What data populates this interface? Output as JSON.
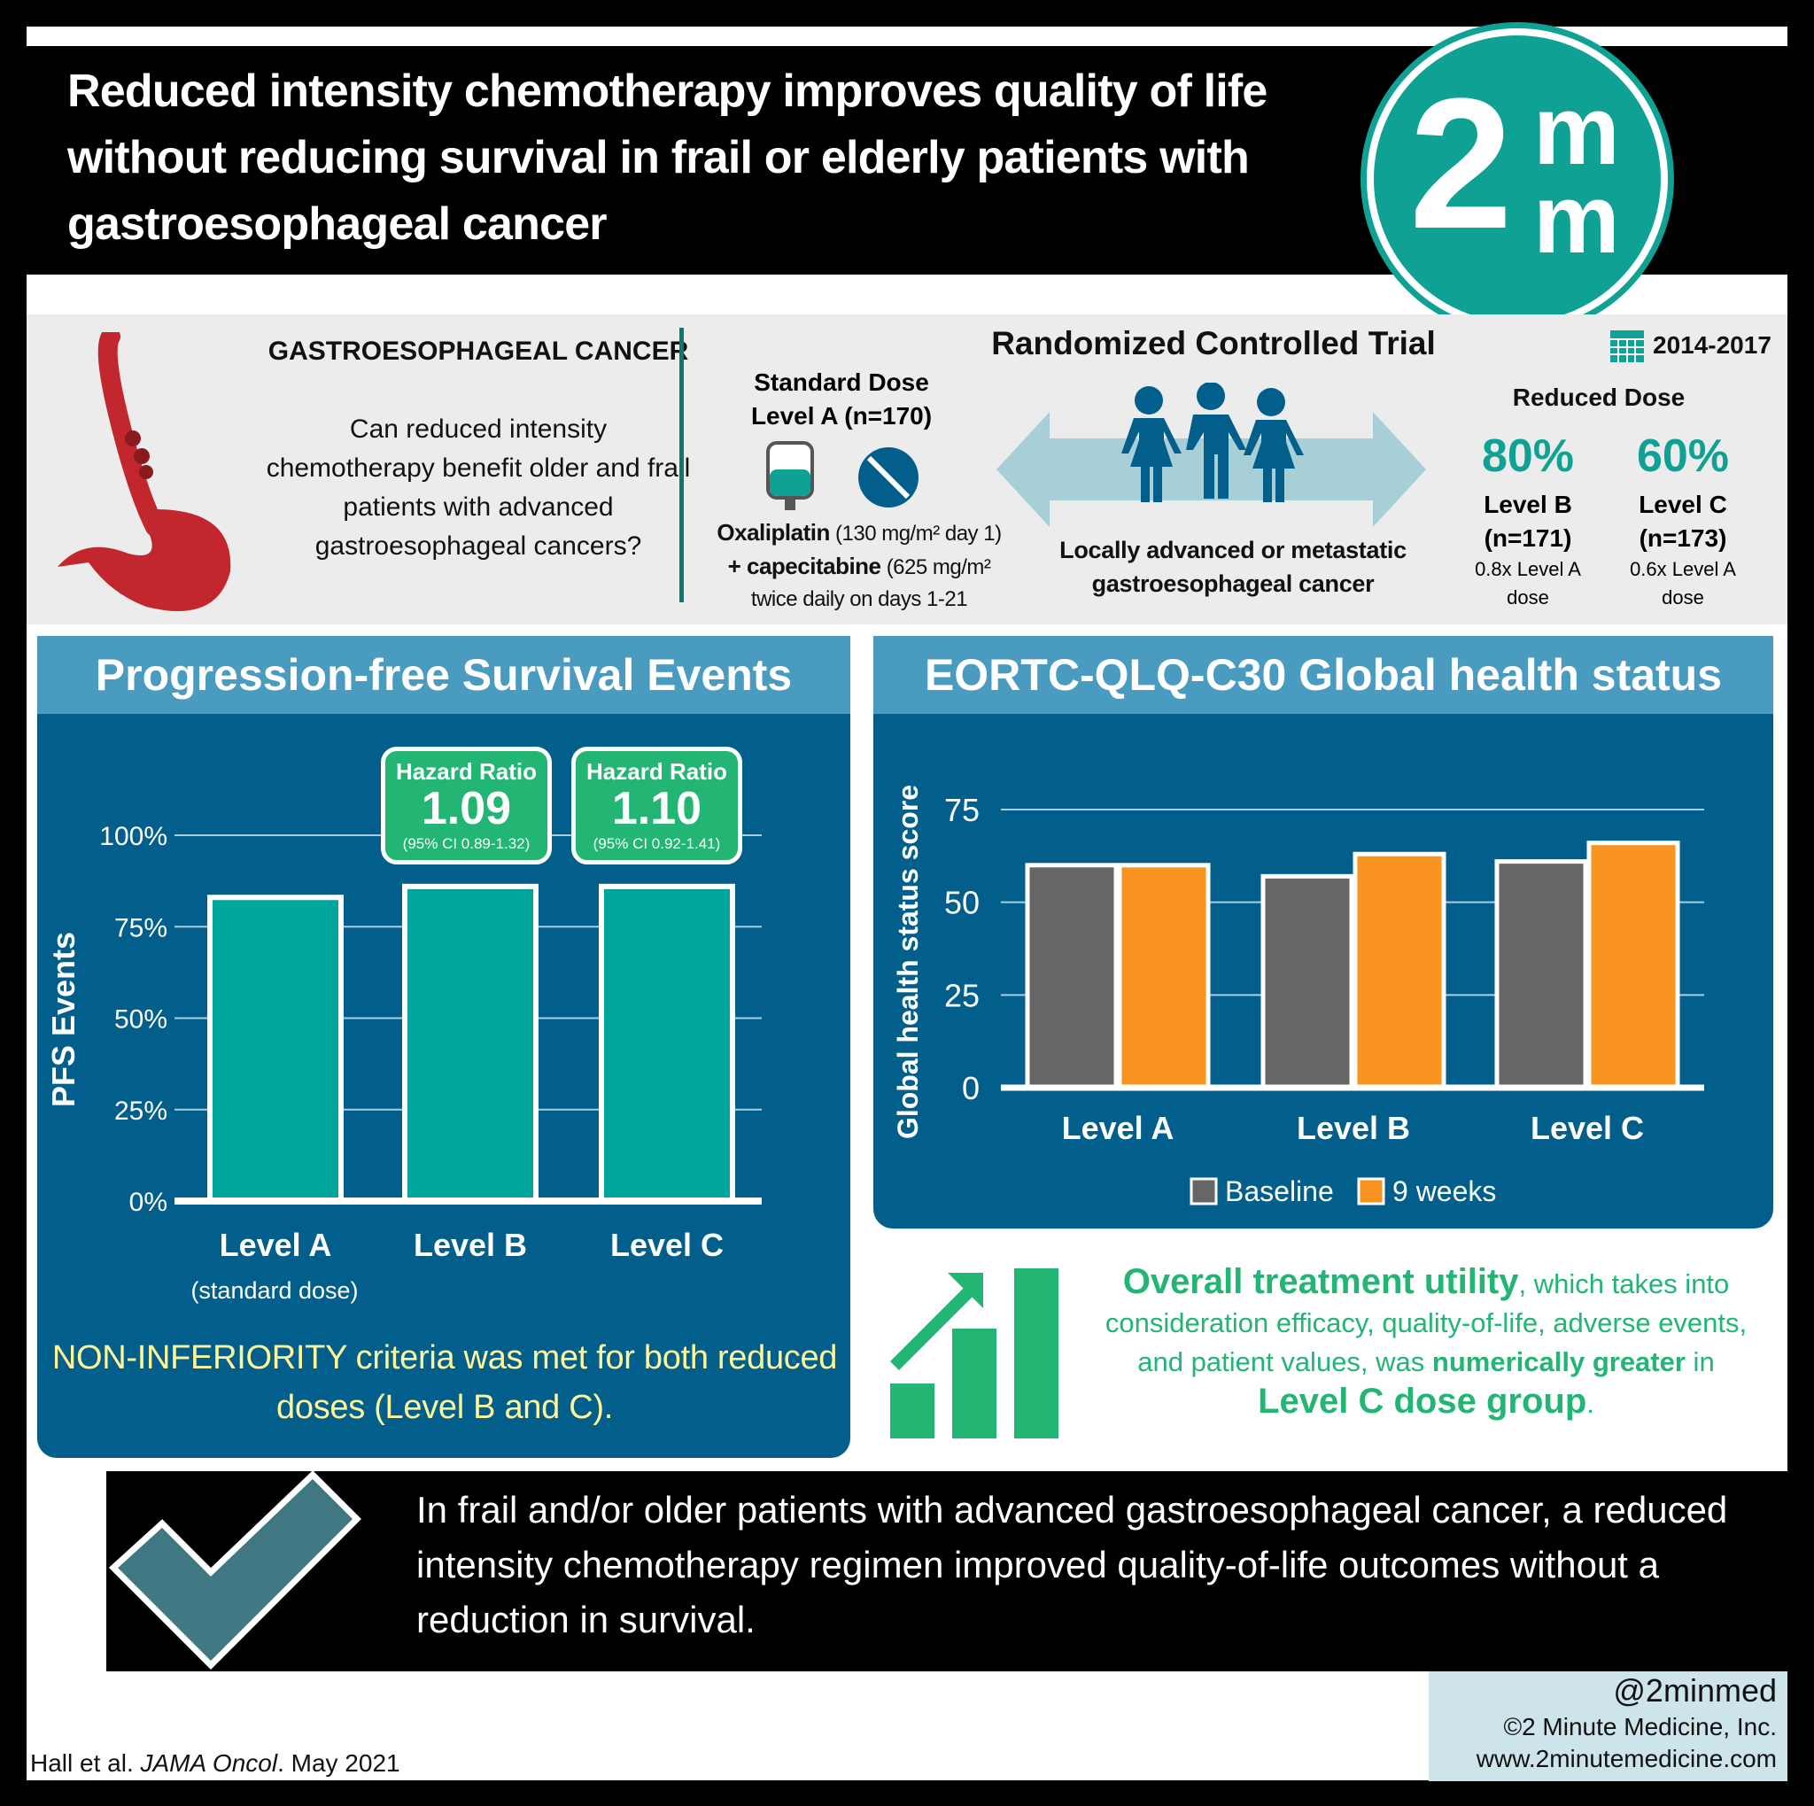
{
  "header": {
    "title": "Reduced intensity chemotherapy improves quality of life without reducing survival in frail or elderly patients with gastroesophageal cancer",
    "logo": "2m m™"
  },
  "intro": {
    "question_title": "GASTROESOPHAGEAL CANCER",
    "question": "Can reduced intensity chemotherapy benefit older and frail patients with advanced gastroesophageal cancers?",
    "trial_title": "Randomized Controlled Trial",
    "years": "2014-2017",
    "standard": {
      "title": "Standard Dose",
      "level": "Level A (n=170)",
      "drug1": "Oxaliplatin",
      "dose1": "(130 mg/m² day 1)",
      "drug2": "+ capecitabine",
      "dose2": "(625 mg/m²",
      "dose2b": "twice daily on days 1-21"
    },
    "population": "Locally advanced or metastatic gastroesophageal cancer",
    "reduced": {
      "title": "Reduced Dose",
      "levels": [
        {
          "pct": "80%",
          "name": "Level B",
          "n": "(n=171)",
          "note": "0.8x Level A dose"
        },
        {
          "pct": "60%",
          "name": "Level C",
          "n": "(n=173)",
          "note": "0.6x Level A dose"
        }
      ]
    },
    "icons": [
      "stomach-icon",
      "iv-bag-icon",
      "pill-icon",
      "people-icon",
      "double-arrow-icon",
      "calendar-icon"
    ]
  },
  "pfs": {
    "title": "Progression-free Survival Events",
    "hazard": [
      {
        "label": "Hazard Ratio",
        "value": "1.09",
        "ci": "(95% CI 0.89-1.32)"
      },
      {
        "label": "Hazard Ratio",
        "value": "1.10",
        "ci": "(95% CI 0.92-1.41)"
      }
    ],
    "sublabel": "(standard dose)",
    "note": "NON-INFERIORITY criteria was met for both reduced doses (Level B and C)."
  },
  "qol": {
    "title": "EORTC-QLQ-C30 Global health status"
  },
  "utility": {
    "lead": "Overall treatment utility",
    "text": ", which takes into consideration efficacy, quality-of-life, adverse events, and patient values, was ",
    "em": "numerically greater",
    "in": " in ",
    "group": "Level C dose group",
    "end": "."
  },
  "conclusion": "In frail and/or older patients with advanced gastroesophageal cancer, a reduced intensity chemotherapy regimen improved quality-of-life outcomes without a reduction in survival.",
  "footer": {
    "handle": "@2minmed",
    "copyright": "©2 Minute Medicine, Inc.",
    "site": "www.2minutemedicine.com",
    "cite_authors": "Hall et al. ",
    "cite_journal": "JAMA Oncol",
    "cite_date": ". May 2021"
  },
  "colors": {
    "teal": "#0fa294",
    "navy": "#025f8c",
    "green": "#22b573",
    "orange": "#f7931e",
    "gray": "#666666",
    "yellow": "#fff799"
  },
  "chart_data": [
    {
      "type": "bar",
      "title": "Progression-free Survival Events",
      "ylabel": "PFS Events",
      "categories": [
        "Level A",
        "Level B",
        "Level C"
      ],
      "values": [
        83,
        86,
        86
      ],
      "yticks": [
        "0%",
        "25%",
        "50%",
        "75%",
        "100%"
      ],
      "ylim": [
        0,
        100
      ],
      "grid": true
    },
    {
      "type": "bar",
      "title": "EORTC-QLQ-C30 Global health status",
      "ylabel": "Global health status score",
      "categories": [
        "Level A",
        "Level B",
        "Level C"
      ],
      "yticks": [
        "0",
        "25",
        "50",
        "75"
      ],
      "ylim": [
        0,
        75
      ],
      "grid": true,
      "legend": "bottom",
      "series": [
        {
          "name": "Baseline",
          "color": "#666666",
          "values": [
            60,
            57,
            61
          ]
        },
        {
          "name": "9 weeks",
          "color": "#f7931e",
          "values": [
            60,
            63,
            66
          ]
        }
      ]
    }
  ]
}
